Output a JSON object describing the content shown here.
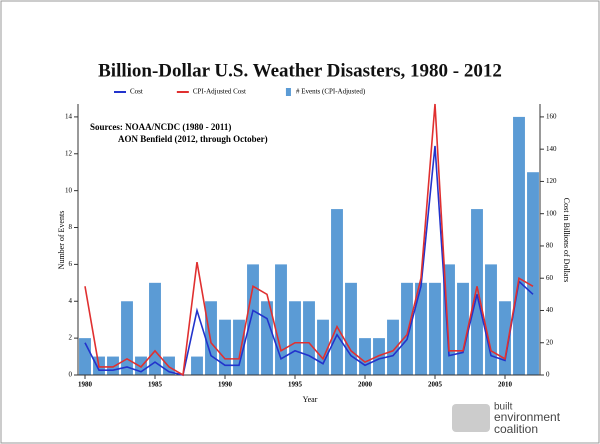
{
  "chart_data": {
    "type": "bar",
    "title": "Billion-Dollar U.S. Weather Disasters, 1980 - 2012",
    "annotations": [
      "Sources: NOAA/NCDC (1980 - 2011)",
      "AON Benfield (2012, through October)"
    ],
    "x_label": "Year",
    "y_label": "Number of Events",
    "y2_label": "Cost in Billions of Dollars",
    "x": [
      1980,
      1981,
      1982,
      1983,
      1984,
      1985,
      1986,
      1987,
      1988,
      1989,
      1990,
      1991,
      1992,
      1993,
      1994,
      1995,
      1996,
      1997,
      1998,
      1999,
      2000,
      2001,
      2002,
      2003,
      2004,
      2005,
      2006,
      2007,
      2008,
      2009,
      2010,
      2011,
      2012
    ],
    "series": [
      {
        "name": "Cost",
        "color": "#2233cc",
        "axis": "y2",
        "type": "line",
        "values": [
          20,
          3,
          3,
          5,
          2,
          8,
          2,
          0,
          40,
          12,
          6,
          6,
          40,
          35,
          10,
          15,
          12,
          7,
          25,
          12,
          6,
          10,
          12,
          22,
          55,
          142,
          12,
          14,
          50,
          12,
          9,
          58,
          50
        ]
      },
      {
        "name": "CPI-Adjusted Cost",
        "color": "#e03030",
        "axis": "y2",
        "type": "line",
        "values": [
          55,
          5,
          5,
          10,
          5,
          15,
          5,
          0,
          70,
          20,
          10,
          10,
          55,
          50,
          15,
          20,
          20,
          10,
          30,
          15,
          8,
          12,
          15,
          25,
          60,
          168,
          15,
          15,
          55,
          15,
          10,
          60,
          55
        ]
      },
      {
        "name": "# Events (CPI-Adjusted)",
        "color": "#5b9bd5",
        "type": "bar",
        "values": [
          2,
          1,
          1,
          4,
          1,
          5,
          1,
          0,
          1,
          4,
          3,
          3,
          6,
          4,
          6,
          4,
          4,
          3,
          9,
          5,
          2,
          2,
          3,
          5,
          5,
          5,
          6,
          5,
          9,
          6,
          4,
          14,
          11
        ]
      }
    ],
    "xlim": [
      1979.5,
      2012.5
    ],
    "xticks": [
      1980,
      1985,
      1990,
      1995,
      2000,
      2005,
      2010
    ],
    "ylim": [
      0,
      14.7
    ],
    "yticks": [
      0,
      2,
      4,
      6,
      8,
      10,
      12,
      14
    ],
    "y2lim": [
      0,
      168
    ],
    "y2ticks": [
      0,
      20,
      40,
      60,
      80,
      100,
      120,
      140,
      160
    ]
  },
  "logo": [
    "built",
    "environment",
    "coalition"
  ]
}
